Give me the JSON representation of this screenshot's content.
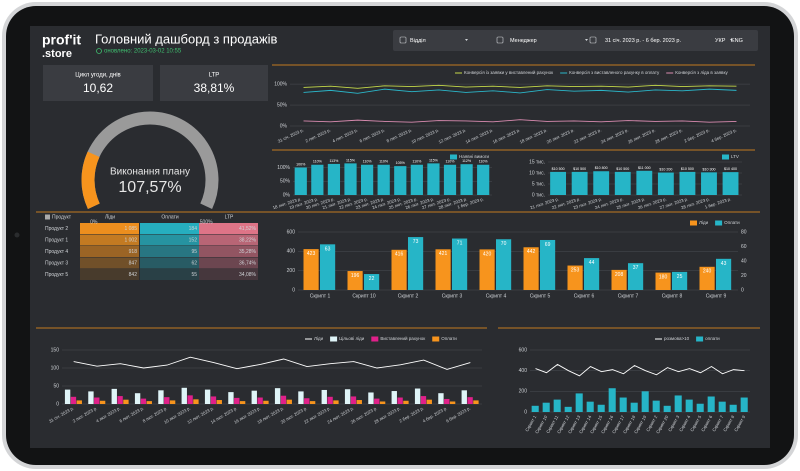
{
  "header": {
    "logo_top": "prof'it",
    "logo_bottom": ".store",
    "title": "Головний дашборд з продажів",
    "updated": "оновлено: 2023-03-02 10:55"
  },
  "filters": [
    "Відділ",
    "Менеджер",
    "31 січ. 2023 р. - 6 бер. 2023 р.",
    "УКР",
    "ENG"
  ],
  "kpis": [
    {
      "label": "Цикл угоди, днів",
      "value": "10,62"
    },
    {
      "label": "LTP",
      "value": "38,81%"
    }
  ],
  "table": {
    "header": [
      "Продукт",
      "Ліди",
      "Оплати",
      "LTP"
    ],
    "rows": [
      [
        "Продукт 2",
        "1 085",
        "184",
        "41,52%"
      ],
      [
        "Продукт 1",
        "1 002",
        "152",
        "38,22%"
      ],
      [
        "Продукт 4",
        "918",
        "95",
        "35,28%"
      ],
      [
        "Продукт 3",
        "847",
        "62",
        "36,74%"
      ],
      [
        "Продукт 5",
        "842",
        "55",
        "34,08%"
      ]
    ]
  },
  "chart_data": [
    {
      "type": "gauge",
      "title": "Виконання плану",
      "value": 107.57,
      "value_label": "107,57%",
      "lim": [
        0,
        500
      ],
      "ticks": [
        {
          "value": 0,
          "label": "0%"
        },
        {
          "value": 500,
          "label": "500%"
        }
      ],
      "color": "#f7941d",
      "track_color": "#9a9a9a"
    },
    {
      "type": "line",
      "categories": [
        "31 січ. 2023 р.",
        "2 лют. 2023 р.",
        "4 лют. 2023 р.",
        "6 лют. 2023 р.",
        "8 лют. 2023 р.",
        "10 лют. 2023 р.",
        "12 лют. 2023 р.",
        "14 лют. 2023 р.",
        "16 лют. 2023 р.",
        "18 лют. 2023 р.",
        "20 лют. 2023 р.",
        "22 лют. 2023 р.",
        "24 лют. 2023 р.",
        "26 лют. 2023 р.",
        "28 лют. 2023 р.",
        "2 бер. 2023 р.",
        "4 бер. 2023 р."
      ],
      "series": [
        {
          "name": "Конверсія із заявки у виставлений рахунок",
          "type": "line",
          "color": "#c5d94a",
          "values": [
            92,
            95,
            90,
            96,
            94,
            97,
            93,
            95,
            92,
            96,
            94,
            95,
            93,
            97,
            94,
            96,
            95
          ]
        },
        {
          "name": "Конверсія з виставленого рахунку в оплату",
          "type": "line",
          "color": "#2bb6c9",
          "values": [
            80,
            85,
            78,
            88,
            82,
            86,
            80,
            84,
            79,
            87,
            83,
            85,
            81,
            86,
            84,
            88,
            85
          ]
        },
        {
          "name": "Конверсія з ліда в заявку",
          "type": "line",
          "color": "#d98bb0",
          "values": [
            12,
            10,
            14,
            11,
            9,
            13,
            12,
            10,
            15,
            11,
            12,
            10,
            13,
            11,
            12,
            9,
            11
          ]
        }
      ],
      "ylim": [
        0,
        105
      ],
      "yticks": [
        {
          "value": 0,
          "label": "0%"
        },
        {
          "value": 50,
          "label": "50%"
        },
        {
          "value": 100,
          "label": "100%"
        }
      ],
      "grid": true
    },
    {
      "type": "bar",
      "categories": [
        "18 лют. 2023 р.",
        "19 лют. 2023 р.",
        "20 лют. 2023 р.",
        "21 лют. 2023 р.",
        "22 лют. 2023 р.",
        "23 лют. 2023 р.",
        "24 лют. 2023 р.",
        "25 лют. 2023 р.",
        "26 лют. 2023 р.",
        "27 лют. 2023 р.",
        "28 лют. 2023 р.",
        "1 бер. 2023 р."
      ],
      "series": [
        {
          "name": "Наявні вимоги",
          "type": "bar",
          "color": "#26b5c7",
          "values": [
            100,
            110,
            113,
            115,
            110,
            110,
            105,
            110,
            115,
            110,
            112,
            110
          ],
          "value_labels": [
            "100%",
            "110%",
            "113%",
            "115%",
            "110%",
            "110%",
            "105%",
            "110%",
            "115%",
            "110%",
            "112%",
            "110%"
          ]
        }
      ],
      "ylim": [
        0,
        120
      ],
      "yticks": [
        {
          "value": 0,
          "label": "0%"
        },
        {
          "value": 50,
          "label": "50%"
        },
        {
          "value": 100,
          "label": "100%"
        }
      ],
      "grid": true
    },
    {
      "type": "bar",
      "categories": [
        "21 лют. 2023 р.",
        "22 лют. 2023 р.",
        "23 лют. 2023 р.",
        "24 лют. 2023 р.",
        "25 лют. 2023 р.",
        "26 лют. 2023 р.",
        "27 лют. 2023 р.",
        "28 лют. 2023 р.",
        "1 бер. 2023 р."
      ],
      "series": [
        {
          "name": "LTV",
          "type": "bar",
          "color": "#26b5c7",
          "values": [
            10500,
            10500,
            10800,
            10500,
            11000,
            10200,
            10500,
            10300,
            10400
          ],
          "value_labels": [
            "$10 500",
            "$10 500",
            "$10 800",
            "$10 500",
            "$11 000",
            "$10 200",
            "$10 500",
            "$10 300",
            "$10 400"
          ]
        }
      ],
      "ylim": [
        0,
        15000
      ],
      "yticks": [
        {
          "value": 0,
          "label": "0 тис."
        },
        {
          "value": 5000,
          "label": "5 тис."
        },
        {
          "value": 10000,
          "label": "10 тис."
        },
        {
          "value": 15000,
          "label": "15 тис."
        }
      ],
      "grid": true
    },
    {
      "type": "bar",
      "categories": [
        "Скрипт 1",
        "Скрипт 10",
        "Скрипт 2",
        "Скрипт 3",
        "Скрипт 4",
        "Скрипт 5",
        "Скрипт 6",
        "Скрипт 7",
        "Скрипт 8",
        "Скрипт 9"
      ],
      "series": [
        {
          "name": "Ліди",
          "type": "bar",
          "color": "#f7941d",
          "values": [
            423,
            196,
            416,
            421,
            420,
            442,
            253,
            208,
            180,
            240
          ]
        },
        {
          "name": "Оплати",
          "type": "bar",
          "axis": "y2",
          "color": "#26b5c7",
          "values": [
            63,
            22,
            73,
            71,
            70,
            69,
            44,
            37,
            25,
            43
          ]
        }
      ],
      "ylim": [
        0,
        600
      ],
      "yticks": [
        0,
        200,
        400,
        600
      ],
      "y2lim": [
        0,
        80
      ],
      "y2ticks": [
        0,
        20,
        40,
        60,
        80
      ],
      "data_labels": true,
      "grid": true
    },
    {
      "type": "combo",
      "categories": [
        "31 січ. 2023 р.",
        "2 лют. 2023 р.",
        "4 лют. 2023 р.",
        "6 лют. 2023 р.",
        "8 лют. 2023 р.",
        "10 лют. 2023 р.",
        "12 лют. 2023 р.",
        "14 лют. 2023 р.",
        "16 лют. 2023 р.",
        "18 лют. 2023 р.",
        "20 лют. 2023 р.",
        "22 лют. 2023 р.",
        "24 лют. 2023 р.",
        "26 лют. 2023 р.",
        "28 лют. 2023 р.",
        "2 бер. 2023 р.",
        "4 бер. 2023 р.",
        "6 бер. 2023 р."
      ],
      "series": [
        {
          "name": "Ліди",
          "type": "line",
          "color": "#ffffff",
          "values": [
            118,
            105,
            112,
            100,
            108,
            130,
            115,
            98,
            110,
            125,
            104,
            112,
            118,
            100,
            109,
            122,
            96,
            115
          ]
        },
        {
          "name": "Цільові ліди",
          "type": "bar",
          "color": "#dff4f7",
          "values": [
            40,
            35,
            42,
            30,
            38,
            45,
            40,
            33,
            37,
            44,
            35,
            39,
            41,
            32,
            36,
            43,
            30,
            38
          ]
        },
        {
          "name": "Виставлений рахунок",
          "type": "bar",
          "color": "#e0208a",
          "values": [
            20,
            18,
            22,
            15,
            19,
            24,
            21,
            17,
            18,
            23,
            16,
            20,
            21,
            15,
            18,
            22,
            14,
            19
          ]
        },
        {
          "name": "Оплати",
          "type": "bar",
          "color": "#f7941d",
          "values": [
            10,
            9,
            12,
            8,
            10,
            13,
            11,
            8,
            9,
            12,
            8,
            10,
            11,
            7,
            9,
            12,
            7,
            10
          ]
        }
      ],
      "ylim": [
        0,
        150
      ],
      "yticks": [
        0,
        50,
        100,
        150
      ],
      "grid": true
    },
    {
      "type": "combo",
      "categories": [
        "Скрипт 1",
        "Скрипт 10",
        "Скрипт 11",
        "Скрипт 12",
        "Скрипт 13",
        "Скрипт 14",
        "Скрипт 15",
        "Скрипт 16",
        "Скрипт 17",
        "Скрипт 18",
        "Скрипт 19",
        "Скрипт 2",
        "Скрипт 20",
        "Скрипт 3",
        "Скрипт 4",
        "Скрипт 5",
        "Скрипт 6",
        "Скрипт 7",
        "Скрипт 8",
        "Скрипт 9"
      ],
      "series": [
        {
          "name": "розмова>10",
          "type": "line",
          "color": "#ffffff",
          "values": [
            420,
            380,
            460,
            400,
            350,
            440,
            390,
            410,
            370,
            450,
            400,
            360,
            430,
            390,
            420,
            380,
            440,
            370,
            410,
            400
          ]
        },
        {
          "name": "оплати",
          "type": "bar",
          "color": "#26b5c7",
          "values": [
            60,
            90,
            120,
            50,
            180,
            100,
            70,
            230,
            140,
            90,
            200,
            110,
            60,
            160,
            120,
            80,
            150,
            100,
            70,
            140
          ]
        }
      ],
      "ylim": [
        0,
        600
      ],
      "yticks": [
        0,
        200,
        400,
        600
      ],
      "grid": true
    }
  ]
}
